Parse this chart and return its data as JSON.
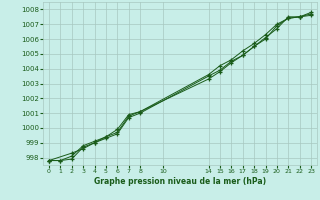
{
  "title": "Graphe pression niveau de la mer (hPa)",
  "bg_color": "#c8eee8",
  "grid_color": "#a8c8c0",
  "line_color": "#1a5c1a",
  "xlim": [
    -0.5,
    23.5
  ],
  "ylim": [
    997.5,
    1008.5
  ],
  "yticks": [
    998,
    999,
    1000,
    1001,
    1002,
    1003,
    1004,
    1005,
    1006,
    1007,
    1008
  ],
  "xtick_positions": [
    0,
    1,
    2,
    3,
    4,
    5,
    6,
    7,
    8,
    10,
    14,
    15,
    16,
    17,
    18,
    19,
    20,
    21,
    22,
    23
  ],
  "xtick_labels": [
    "0",
    "1",
    "2",
    "3",
    "4",
    "5",
    "6",
    "7",
    "8",
    "10",
    "14",
    "15",
    "16",
    "17",
    "18",
    "19",
    "20",
    "21",
    "22",
    "23"
  ],
  "line1_x": [
    0,
    1,
    2,
    3,
    4,
    5,
    6,
    7,
    8,
    14,
    15,
    16,
    17,
    18,
    19,
    20,
    21,
    22,
    23
  ],
  "line1_y": [
    997.8,
    997.8,
    997.9,
    998.7,
    999.0,
    999.3,
    999.6,
    1000.7,
    1001.0,
    1003.5,
    1003.9,
    1004.5,
    1004.9,
    1005.5,
    1006.0,
    1006.9,
    1007.4,
    1007.5,
    1007.6
  ],
  "line2_x": [
    0,
    1,
    2,
    3,
    4,
    5,
    6,
    7,
    8,
    14,
    15,
    16,
    17,
    18,
    19,
    20,
    21,
    22,
    23
  ],
  "line2_y": [
    997.8,
    997.8,
    998.1,
    998.8,
    999.1,
    999.4,
    999.7,
    1000.8,
    1001.1,
    1003.6,
    1004.2,
    1004.6,
    1005.2,
    1005.7,
    1006.3,
    1007.0,
    1007.4,
    1007.5,
    1007.7
  ],
  "line3_x": [
    0,
    2,
    3,
    4,
    5,
    6,
    7,
    8,
    14,
    15,
    16,
    17,
    18,
    19,
    20,
    21,
    22,
    23
  ],
  "line3_y": [
    997.8,
    998.3,
    998.6,
    999.0,
    999.4,
    999.9,
    1000.9,
    1001.1,
    1003.3,
    1003.8,
    1004.4,
    1004.9,
    1005.5,
    1006.1,
    1006.7,
    1007.5,
    1007.5,
    1007.8
  ]
}
